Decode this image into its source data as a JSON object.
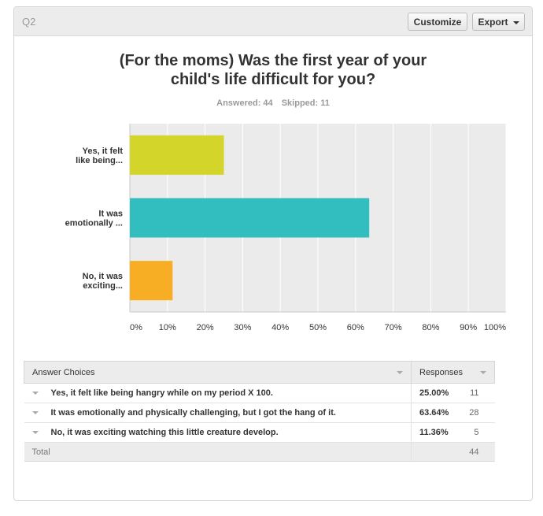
{
  "header": {
    "question_label": "Q2",
    "customize_label": "Customize",
    "export_label": "Export"
  },
  "title_line1": "(For the moms) Was the first year of your",
  "title_line2": "child's life difficult for you?",
  "stats": {
    "answered": "Answered: 44",
    "skipped": "Skipped: 11"
  },
  "colors": {
    "bar1": "#d3d52a",
    "bar2": "#32bebf",
    "bar3": "#f7ae25",
    "grid": "#ffffff",
    "plot_bg": "#ebebeb"
  },
  "chart_data": {
    "type": "bar",
    "orientation": "horizontal",
    "categories": [
      [
        "Yes, it felt",
        "like being..."
      ],
      [
        "It was",
        "emotionally ..."
      ],
      [
        "No, it was",
        "exciting..."
      ]
    ],
    "values": [
      25.0,
      63.64,
      11.36
    ],
    "xlim": [
      0,
      100
    ],
    "ticks": [
      "0%",
      "10%",
      "20%",
      "30%",
      "40%",
      "50%",
      "60%",
      "70%",
      "80%",
      "90%",
      "100%"
    ],
    "grid": true
  },
  "table": {
    "col_choices": "Answer Choices",
    "col_responses": "Responses",
    "rows": [
      {
        "choice": "Yes, it felt like being hangry while on my period X 100.",
        "pct": "25.00%",
        "count": "11"
      },
      {
        "choice": "It was emotionally and physically challenging, but I got the hang of it.",
        "pct": "63.64%",
        "count": "28"
      },
      {
        "choice": "No, it was exciting watching this little creature develop.",
        "pct": "11.36%",
        "count": "5"
      }
    ],
    "total_label": "Total",
    "total_count": "44"
  }
}
